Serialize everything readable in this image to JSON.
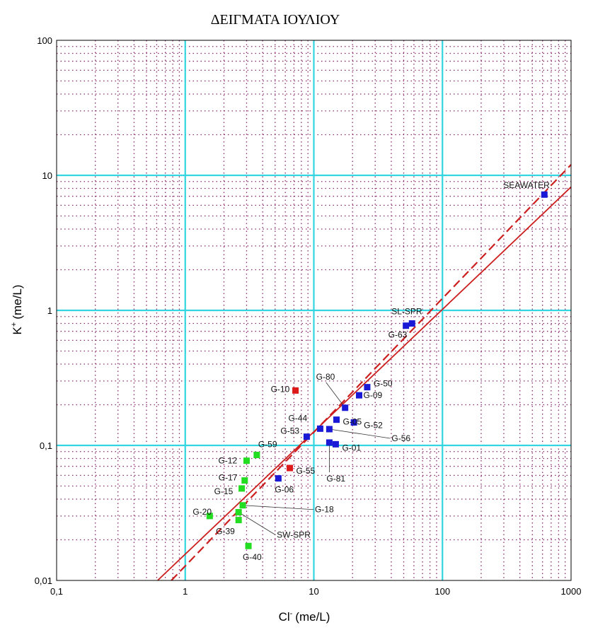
{
  "chart_data": {
    "type": "scatter",
    "title": "ΔΕΙΓΜΑΤΑ ΙΟΥΛΙΟΥ",
    "xlabel": "Cl",
    "xlabel_sup": "-",
    "xlabel_unit": "(me/L)",
    "ylabel": "K",
    "ylabel_sup": "+",
    "ylabel_unit": "(me/L)",
    "xscale": "log",
    "yscale": "log",
    "xlim": [
      0.1,
      1000
    ],
    "ylim": [
      0.01,
      100
    ],
    "x_ticks": [
      0.1,
      1,
      10,
      100,
      1000
    ],
    "x_tick_labels": [
      "0,1",
      "1",
      "10",
      "100",
      "1000"
    ],
    "y_ticks": [
      0.01,
      0.1,
      1,
      10,
      100
    ],
    "y_tick_labels": [
      "0,01",
      "0,1",
      "1",
      "10",
      "100"
    ],
    "grid": true,
    "colors": {
      "major_grid": "#33d6e0",
      "minor_grid": "#8a2a6a",
      "line": "#cc1f1f",
      "blue": "#1a1ad6",
      "red": "#dd1a1a",
      "green": "#22dd22"
    },
    "lines": [
      {
        "style": "solid",
        "points": [
          [
            0.61,
            0.01
          ],
          [
            1000,
            8.2
          ]
        ]
      },
      {
        "style": "dashed",
        "points": [
          [
            0.78,
            0.01
          ],
          [
            1000,
            12
          ]
        ]
      }
    ],
    "points": [
      {
        "label": "SEAWATER",
        "x": 620,
        "y": 7.2,
        "color": "blue"
      },
      {
        "label": "SL-SPR",
        "x": 58,
        "y": 0.8,
        "color": "blue"
      },
      {
        "label": "G-63",
        "x": 52,
        "y": 0.77,
        "color": "blue"
      },
      {
        "label": "G-50",
        "x": 26,
        "y": 0.27,
        "color": "blue"
      },
      {
        "label": "G-09",
        "x": 22.5,
        "y": 0.235,
        "color": "blue"
      },
      {
        "label": "G-80",
        "x": 17.5,
        "y": 0.19,
        "color": "blue"
      },
      {
        "label": "G-05",
        "x": 15,
        "y": 0.155,
        "color": "blue"
      },
      {
        "label": "G-52",
        "x": 20.5,
        "y": 0.148,
        "color": "blue"
      },
      {
        "label": "G-56",
        "x": 13.2,
        "y": 0.132,
        "color": "blue"
      },
      {
        "label": "G-44",
        "x": 11.2,
        "y": 0.133,
        "color": "blue"
      },
      {
        "label": "G-53",
        "x": 8.8,
        "y": 0.116,
        "color": "blue"
      },
      {
        "label": "G-81",
        "x": 13.2,
        "y": 0.105,
        "color": "blue"
      },
      {
        "label": "G-01",
        "x": 14.8,
        "y": 0.102,
        "color": "blue"
      },
      {
        "label": "G-06",
        "x": 5.3,
        "y": 0.057,
        "color": "blue"
      },
      {
        "label": "G-10",
        "x": 7.2,
        "y": 0.255,
        "color": "red"
      },
      {
        "label": "G-55",
        "x": 6.5,
        "y": 0.068,
        "color": "red"
      },
      {
        "label": "G-59",
        "x": 3.6,
        "y": 0.085,
        "color": "green"
      },
      {
        "label": "G-12",
        "x": 3.0,
        "y": 0.077,
        "color": "green"
      },
      {
        "label": "G-17",
        "x": 2.9,
        "y": 0.055,
        "color": "green"
      },
      {
        "label": "G-15",
        "x": 2.75,
        "y": 0.048,
        "color": "green"
      },
      {
        "label": "G-18",
        "x": 2.8,
        "y": 0.036,
        "color": "green"
      },
      {
        "label": "SW-SPR",
        "x": 2.6,
        "y": 0.032,
        "color": "green"
      },
      {
        "label": "G-39",
        "x": 2.6,
        "y": 0.028,
        "color": "green"
      },
      {
        "label": "G-20",
        "x": 1.55,
        "y": 0.03,
        "color": "green"
      },
      {
        "label": "G-40",
        "x": 3.1,
        "y": 0.018,
        "color": "green"
      }
    ]
  }
}
